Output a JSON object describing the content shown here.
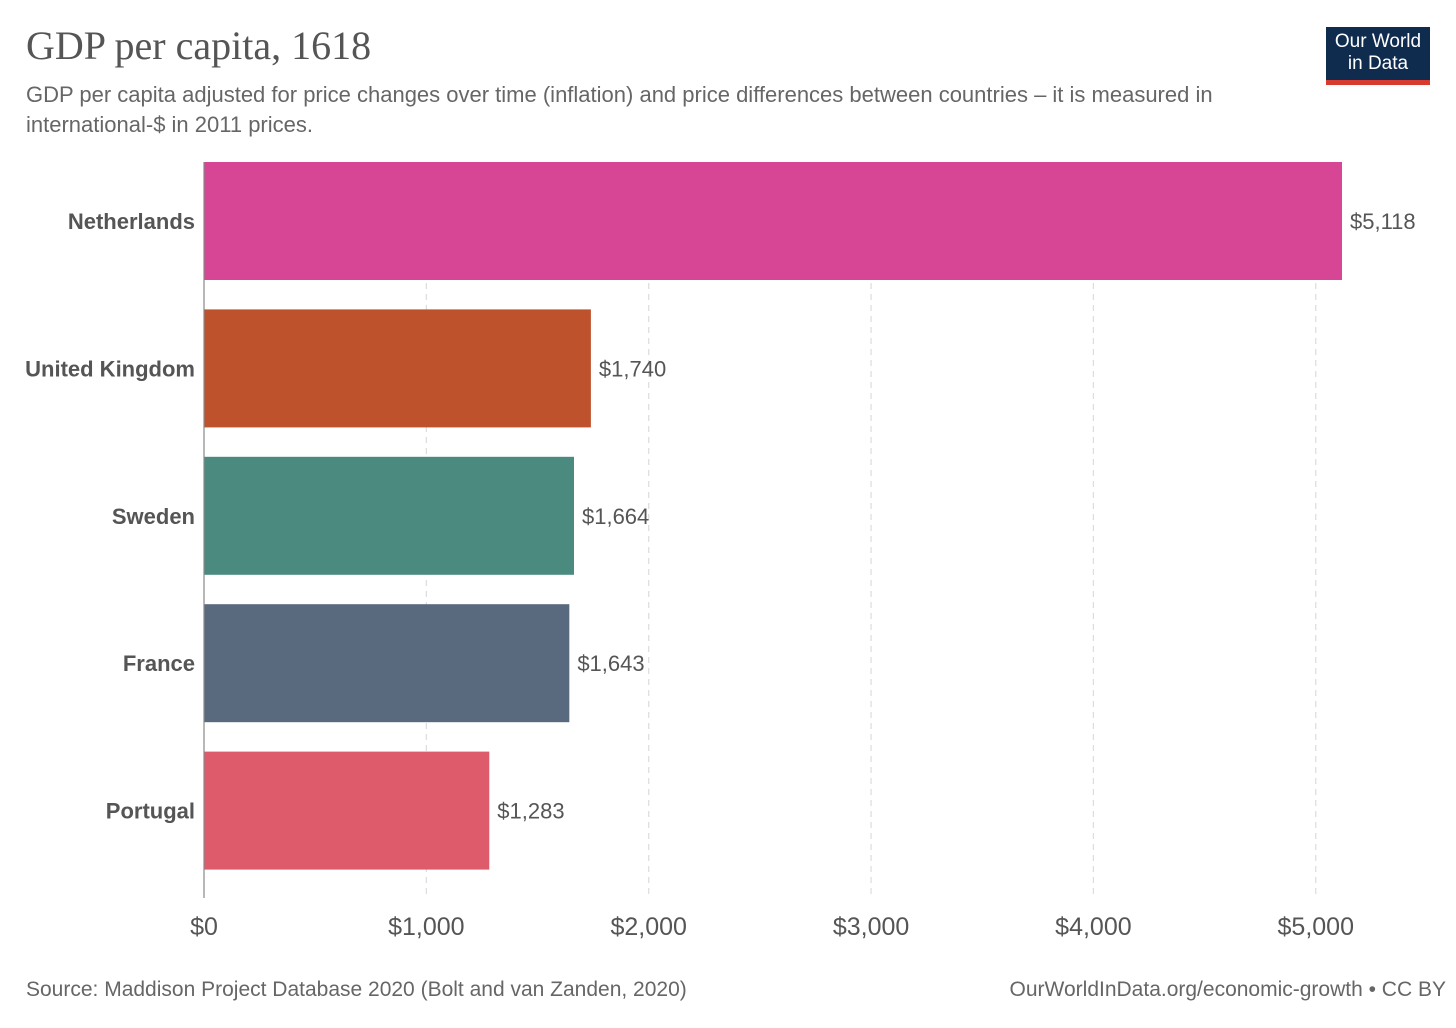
{
  "header": {
    "title": "GDP per capita, 1618",
    "subtitle": "GDP per capita adjusted for price changes over time (inflation) and price differences between countries – it is measured in international-$ in 2011 prices."
  },
  "logo": {
    "line1": "Our World",
    "line2": "in Data"
  },
  "footer": {
    "source": "Source: Maddison Project Database 2020 (Bolt and van Zanden, 2020)",
    "credit": "OurWorldInData.org/economic-growth • CC BY"
  },
  "chart_data": {
    "type": "bar",
    "orientation": "horizontal",
    "title": "GDP per capita, 1618",
    "categories": [
      "Netherlands",
      "United Kingdom",
      "Sweden",
      "France",
      "Portugal"
    ],
    "values": [
      5118,
      1740,
      1664,
      1643,
      1283
    ],
    "value_labels": [
      "$5,118",
      "$1,740",
      "$1,664",
      "$1,643",
      "$1,283"
    ],
    "colors": [
      "#d64694",
      "#bd522d",
      "#4b8b7f",
      "#59697e",
      "#de5b6b"
    ],
    "xlim": [
      0,
      5118
    ],
    "xticks": [
      0,
      1000,
      2000,
      3000,
      4000,
      5000
    ],
    "xtick_labels": [
      "$0",
      "$1,000",
      "$2,000",
      "$3,000",
      "$4,000",
      "$5,000"
    ],
    "grid": "vertical-dashed",
    "legend": "none"
  }
}
